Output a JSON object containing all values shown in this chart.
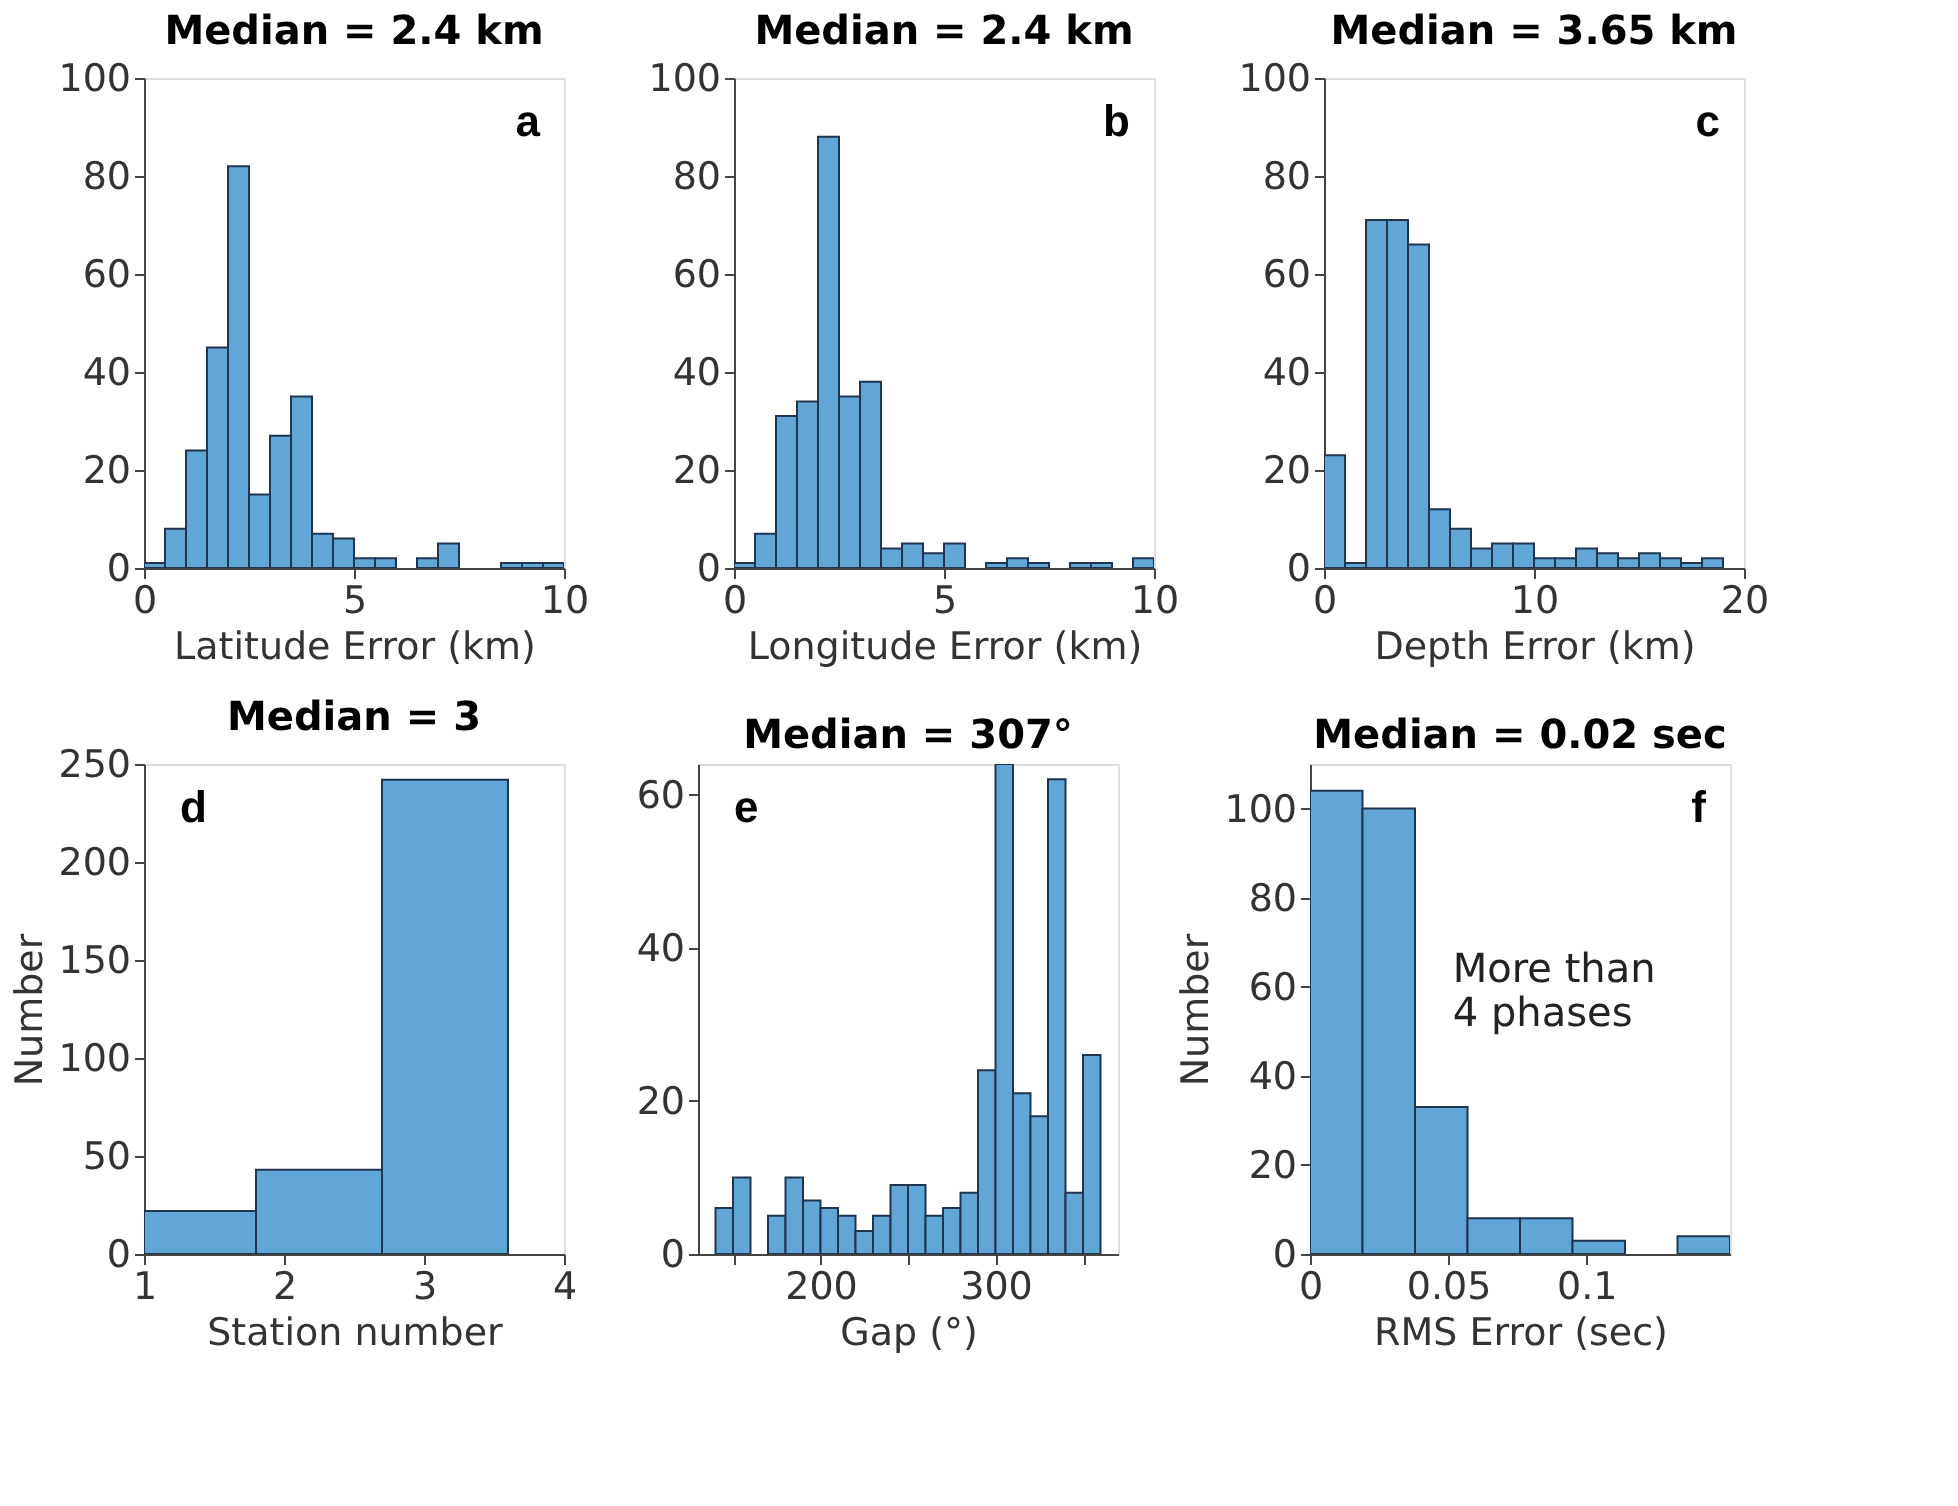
{
  "chart_data": [
    {
      "type": "histogram",
      "title": "Median = 2.4 km",
      "xlabel": "Latitude Error (km)",
      "color": "#62a6d8",
      "bins": [
        0,
        0.5,
        1,
        1.5,
        2,
        2.5,
        3,
        3.5,
        4,
        4.5,
        5,
        5.5,
        6,
        6.5,
        7,
        7.5,
        8,
        8.5,
        9,
        9.5,
        10
      ],
      "values": [
        1,
        8,
        24,
        45,
        82,
        15,
        27,
        35,
        7,
        6,
        2,
        2,
        0,
        2,
        5,
        0,
        0,
        1,
        1,
        1
      ],
      "xlim": [
        0,
        10
      ],
      "xticks": [
        0,
        5,
        10
      ],
      "ylim": [
        0,
        100
      ],
      "yticks": [
        0,
        20,
        40,
        60,
        80,
        100
      ],
      "annotations": [
        "a"
      ]
    },
    {
      "type": "histogram",
      "title": "Median = 2.4 km",
      "xlabel": "Longitude Error (km)",
      "color": "#62a6d8",
      "bins": [
        0,
        0.5,
        1,
        1.5,
        2,
        2.5,
        3,
        3.5,
        4,
        4.5,
        5,
        5.5,
        6,
        6.5,
        7,
        7.5,
        8,
        8.5,
        9,
        9.5,
        10
      ],
      "values": [
        1,
        7,
        31,
        34,
        88,
        35,
        38,
        4,
        5,
        3,
        5,
        0,
        1,
        2,
        1,
        0,
        1,
        1,
        0,
        2
      ],
      "xlim": [
        0,
        10
      ],
      "xticks": [
        0,
        5,
        10
      ],
      "ylim": [
        0,
        100
      ],
      "yticks": [
        0,
        20,
        40,
        60,
        80,
        100
      ],
      "annotations": [
        "b"
      ]
    },
    {
      "type": "histogram",
      "title": "Median = 3.65 km",
      "xlabel": "Depth Error (km)",
      "color": "#62a6d8",
      "bins": [
        0,
        1,
        2,
        3,
        4,
        5,
        6,
        7,
        8,
        9,
        10,
        11,
        12,
        13,
        14,
        15,
        16,
        17,
        18,
        19,
        20
      ],
      "values": [
        23,
        1,
        71,
        71,
        66,
        12,
        8,
        4,
        5,
        5,
        2,
        2,
        4,
        3,
        2,
        3,
        2,
        1,
        2,
        0
      ],
      "xlim": [
        0,
        20
      ],
      "xticks": [
        0,
        10,
        20
      ],
      "ylim": [
        0,
        100
      ],
      "yticks": [
        0,
        20,
        40,
        60,
        80,
        100
      ],
      "annotations": [
        "c"
      ]
    },
    {
      "type": "histogram",
      "title": "Median = 3",
      "xlabel": "Station number",
      "ylabel": "Number",
      "color": "#62a6d8",
      "bins": [
        1,
        1.8,
        2.7,
        3.6
      ],
      "values": [
        22,
        43,
        242
      ],
      "xlim": [
        1,
        4
      ],
      "xticks": [
        1,
        2,
        3,
        4
      ],
      "ylim": [
        0,
        250
      ],
      "yticks": [
        0,
        50,
        100,
        150,
        200,
        250
      ],
      "annotations": [
        "d"
      ]
    },
    {
      "type": "histogram",
      "title": "Median = 307°",
      "xlabel": "Gap (°)",
      "color": "#62a6d8",
      "bins": [
        140,
        150,
        160,
        170,
        180,
        190,
        200,
        210,
        220,
        230,
        240,
        250,
        260,
        270,
        280,
        290,
        300,
        310,
        320,
        330,
        340,
        350,
        360
      ],
      "values": [
        6,
        10,
        0,
        5,
        10,
        7,
        6,
        5,
        3,
        5,
        9,
        9,
        5,
        6,
        8,
        24,
        64,
        21,
        18,
        62,
        8,
        26
      ],
      "xlim": [
        130,
        370
      ],
      "xticks": [
        {
          "value": 150,
          "label": null
        },
        200,
        {
          "value": 250,
          "label": null
        },
        300,
        {
          "value": 350,
          "label": null
        }
      ],
      "ylim": [
        0,
        64
      ],
      "yticks": [
        0,
        20,
        40,
        60
      ],
      "annotations": [
        "e"
      ]
    },
    {
      "type": "histogram",
      "title": "Median = 0.02 sec",
      "xlabel": "RMS Error (sec)",
      "ylabel": "Number",
      "color": "#62a6d8",
      "bins": [
        0,
        0.019,
        0.038,
        0.057,
        0.076,
        0.095,
        0.114,
        0.133,
        0.152
      ],
      "values": [
        104,
        100,
        33,
        8,
        8,
        3,
        0,
        4
      ],
      "xlim": [
        0,
        0.152
      ],
      "xticks": [
        0,
        0.05,
        0.1
      ],
      "ylim": [
        0,
        110
      ],
      "yticks": [
        0,
        20,
        40,
        60,
        80,
        100
      ],
      "annotations": [
        "f",
        "More than\n4 phases"
      ]
    }
  ]
}
